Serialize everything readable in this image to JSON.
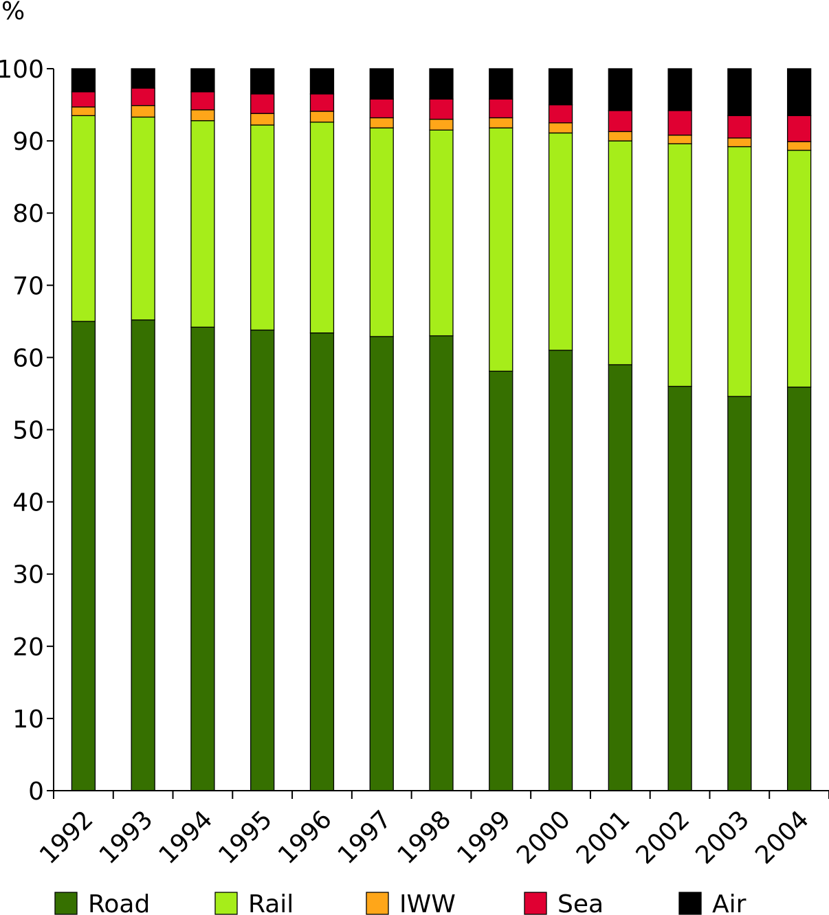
{
  "chart_data": {
    "type": "bar",
    "stacked": true,
    "unit_label": "%",
    "title": "",
    "xlabel": "",
    "ylabel": "%",
    "ylim": [
      0,
      100
    ],
    "yticks": [
      0,
      10,
      20,
      30,
      40,
      50,
      60,
      70,
      80,
      90,
      100
    ],
    "grid": false,
    "legend_position": "bottom",
    "categories": [
      "1992",
      "1993",
      "1994",
      "1995",
      "1996",
      "1997",
      "1998",
      "1999",
      "2000",
      "2001",
      "2002",
      "2003",
      "2004"
    ],
    "series": [
      {
        "name": "Road",
        "color": "#367000",
        "values": [
          65.0,
          65.2,
          64.2,
          63.8,
          63.4,
          62.9,
          63.0,
          58.1,
          61.0,
          59.0,
          56.0,
          54.6,
          55.9
        ]
      },
      {
        "name": "Rail",
        "color": "#a6ed1a",
        "values": [
          28.5,
          28.1,
          28.6,
          28.4,
          29.2,
          28.9,
          28.5,
          33.7,
          30.1,
          31.0,
          33.6,
          34.6,
          32.8
        ]
      },
      {
        "name": "IWW",
        "color": "#ffa619",
        "values": [
          1.2,
          1.6,
          1.5,
          1.6,
          1.5,
          1.4,
          1.5,
          1.4,
          1.4,
          1.3,
          1.2,
          1.2,
          1.2
        ]
      },
      {
        "name": "Sea",
        "color": "#e00032",
        "values": [
          2.1,
          2.4,
          2.5,
          2.7,
          2.4,
          2.6,
          2.8,
          2.6,
          2.5,
          2.9,
          3.4,
          3.1,
          3.6
        ]
      },
      {
        "name": "Air",
        "color": "#000000",
        "values": [
          3.2,
          2.7,
          3.2,
          3.5,
          3.5,
          4.2,
          4.2,
          4.2,
          5.0,
          5.8,
          5.8,
          6.5,
          6.5
        ]
      }
    ]
  }
}
